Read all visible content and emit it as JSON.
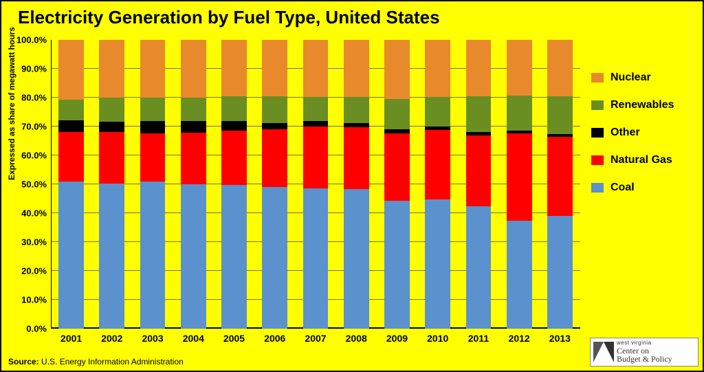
{
  "chart": {
    "type": "stacked-bar",
    "title": "Electricity Generation by Fuel Type, United States",
    "title_fontsize": 26,
    "y_axis_title": "Expressed as share of megawatt hours",
    "y_axis_title_fontsize": 12,
    "background_color": "#ffff00",
    "grid_color": "#000000",
    "ylim": [
      0,
      100
    ],
    "ytick_step": 10,
    "ytick_format_suffix": "%",
    "ytick_decimals": 1,
    "ytick_fontsize": 13,
    "xlabel_fontsize": 14,
    "legend_fontsize": 16,
    "bar_width_ratio": 0.62,
    "categories": [
      "2001",
      "2002",
      "2003",
      "2004",
      "2005",
      "2006",
      "2007",
      "2008",
      "2009",
      "2010",
      "2011",
      "2012",
      "2013"
    ],
    "series": [
      {
        "name": "Coal",
        "color": "#5b91cd"
      },
      {
        "name": "Natural Gas",
        "color": "#ff0000"
      },
      {
        "name": "Other",
        "color": "#000000"
      },
      {
        "name": "Renewables",
        "color": "#6b8e23"
      },
      {
        "name": "Nuclear",
        "color": "#e88a2b"
      }
    ],
    "legend_order": [
      "Nuclear",
      "Renewables",
      "Other",
      "Natural Gas",
      "Coal"
    ],
    "values": {
      "Coal": [
        51.0,
        50.2,
        50.9,
        49.9,
        49.7,
        49.0,
        48.6,
        48.3,
        44.4,
        44.8,
        42.3,
        37.4,
        39.0
      ],
      "Natural Gas": [
        17.1,
        18.0,
        16.8,
        17.9,
        18.8,
        20.1,
        21.5,
        21.4,
        23.3,
        23.9,
        24.7,
        30.3,
        27.5
      ],
      "Other": [
        4.1,
        3.5,
        4.2,
        4.0,
        3.4,
        2.0,
        1.9,
        1.5,
        1.3,
        1.3,
        1.0,
        0.9,
        1.0
      ],
      "Renewables": [
        7.2,
        8.3,
        8.2,
        8.2,
        8.5,
        9.4,
        8.3,
        9.1,
        10.6,
        10.3,
        12.6,
        12.2,
        12.9
      ],
      "Nuclear": [
        20.6,
        20.0,
        19.9,
        20.0,
        19.6,
        19.5,
        19.7,
        19.7,
        20.4,
        19.7,
        19.4,
        19.2,
        19.6
      ]
    }
  },
  "source": {
    "label": "Source:",
    "text": "U.S. Energy Information Administration"
  },
  "logo": {
    "line1": "west virginia",
    "line2": "Center on",
    "line3": "Budget & Policy"
  }
}
